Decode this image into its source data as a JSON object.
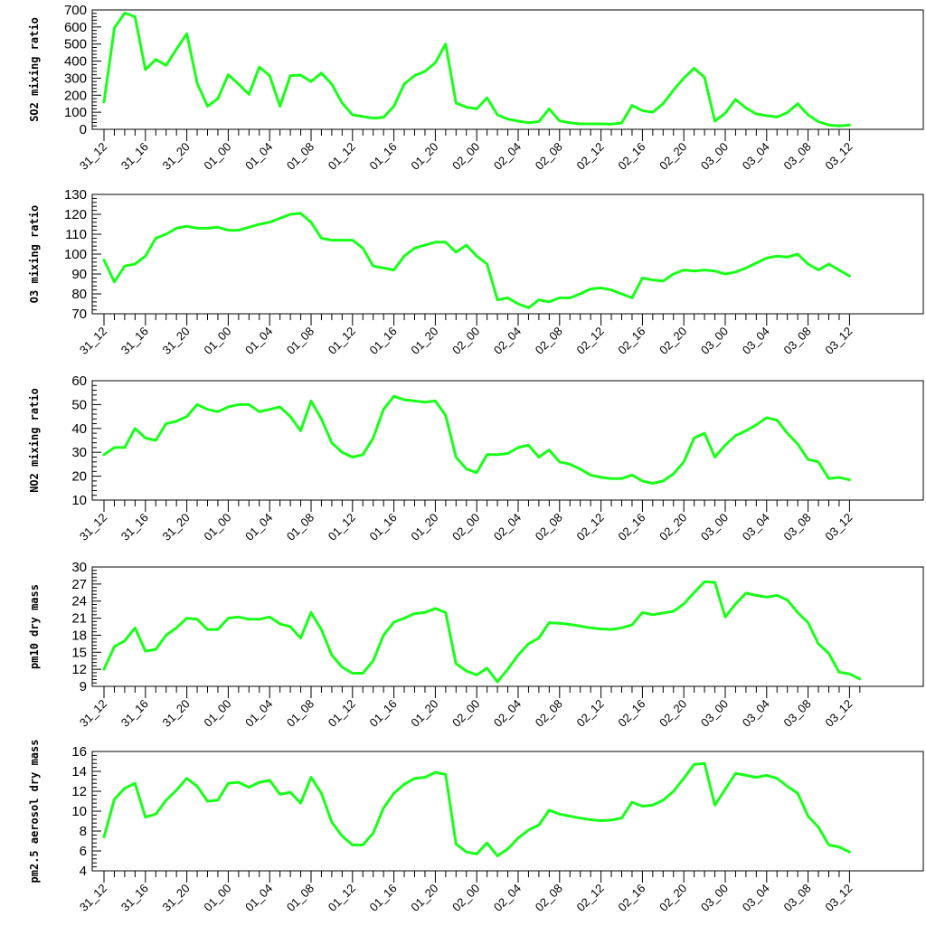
{
  "line_color": "#19ff19",
  "chart_data": [
    {
      "type": "line",
      "ylabel": "SO2 mixing ratio",
      "ylim": [
        0,
        700
      ],
      "yticks": [
        0,
        100,
        200,
        300,
        400,
        500,
        600,
        700
      ],
      "xtick_labels": [
        "31_12",
        "31_16",
        "31_20",
        "01_00",
        "01_04",
        "01_08",
        "01_12",
        "01_16",
        "01_20",
        "02_00",
        "02_04",
        "02_08",
        "02_12",
        "02_16",
        "02_20",
        "03_00",
        "03_04",
        "03_08",
        "03_12"
      ],
      "series": [
        {
          "values": [
            160,
            595,
            682,
            660,
            350,
            410,
            375,
            470,
            560,
            270,
            135,
            180,
            320,
            265,
            205,
            365,
            315,
            135,
            315,
            318,
            280,
            330,
            265,
            155,
            85,
            75,
            65,
            70,
            135,
            265,
            315,
            340,
            390,
            500,
            155,
            130,
            120,
            185,
            85,
            60,
            48,
            38,
            45,
            120,
            50,
            38,
            32,
            32,
            32,
            30,
            37,
            140,
            110,
            100,
            150,
            230,
            300,
            358,
            305,
            48,
            95,
            175,
            125,
            90,
            80,
            72,
            98,
            150,
            85,
            45,
            25,
            20,
            25
          ]
        }
      ]
    },
    {
      "type": "line",
      "ylabel": "O3 mixing ratio",
      "ylim": [
        70,
        130
      ],
      "yticks": [
        70,
        80,
        90,
        100,
        110,
        120,
        130
      ],
      "xtick_labels": [
        "31_12",
        "31_16",
        "31_20",
        "01_00",
        "01_04",
        "01_08",
        "01_12",
        "01_16",
        "01_20",
        "02_00",
        "02_04",
        "02_08",
        "02_12",
        "02_16",
        "02_20",
        "03_00",
        "03_04",
        "03_08",
        "03_12"
      ],
      "series": [
        {
          "values": [
            97,
            86,
            94,
            95,
            99,
            108,
            110,
            113,
            114,
            113,
            113,
            113.5,
            112,
            112,
            113.5,
            115,
            116,
            118,
            120,
            120.5,
            116,
            108,
            107,
            107,
            107,
            103,
            94,
            93,
            92,
            99,
            103,
            104.5,
            106,
            106,
            101,
            104.5,
            99,
            95,
            77,
            78,
            75,
            73,
            77,
            76,
            78,
            78,
            80,
            82.5,
            83,
            82,
            80,
            78,
            88,
            87,
            86.5,
            90,
            92,
            91.5,
            92,
            91.5,
            90,
            91,
            93,
            95.5,
            98,
            99,
            98.5,
            100,
            95,
            92,
            95,
            92,
            89
          ]
        }
      ]
    },
    {
      "type": "line",
      "ylabel": "NO2 mixing ratio",
      "ylim": [
        10,
        60
      ],
      "yticks": [
        10,
        20,
        30,
        40,
        50,
        60
      ],
      "xtick_labels": [
        "31_12",
        "31_16",
        "31_20",
        "01_00",
        "01_04",
        "01_08",
        "01_12",
        "01_16",
        "01_20",
        "02_00",
        "02_04",
        "02_08",
        "02_12",
        "02_16",
        "02_20",
        "03_00",
        "03_04",
        "03_08",
        "03_12"
      ],
      "series": [
        {
          "values": [
            29,
            32,
            32,
            40,
            36,
            35,
            42,
            43,
            45,
            50,
            48,
            47,
            49,
            50,
            50,
            47,
            48,
            49,
            45,
            39,
            51.5,
            44,
            34,
            30,
            28,
            29,
            36,
            48,
            53.5,
            52,
            51.5,
            51,
            51.5,
            45.5,
            28,
            23,
            21.5,
            29,
            29,
            29.5,
            32,
            33,
            28,
            31,
            26,
            25,
            23,
            20.5,
            19.5,
            19,
            19,
            20.5,
            18,
            17,
            18,
            21,
            26,
            36,
            38,
            28,
            33,
            37,
            39,
            41.5,
            44.5,
            43.5,
            38,
            33.5,
            27,
            26,
            19,
            19.5,
            18.5
          ]
        }
      ]
    },
    {
      "type": "line",
      "ylabel": "pm10 dry mass",
      "ylim": [
        9,
        30
      ],
      "yticks": [
        9,
        12,
        15,
        18,
        21,
        24,
        27,
        30
      ],
      "xtick_labels": [
        "31_12",
        "31_16",
        "31_20",
        "01_00",
        "01_04",
        "01_08",
        "01_12",
        "01_16",
        "01_20",
        "02_00",
        "02_04",
        "02_08",
        "02_12",
        "02_16",
        "02_20",
        "03_00",
        "03_04",
        "03_08",
        "03_12"
      ],
      "series": [
        {
          "values": [
            12,
            16,
            17,
            19.3,
            15.2,
            15.5,
            18,
            19.3,
            21,
            20.8,
            19,
            19,
            21,
            21.2,
            20.8,
            20.8,
            21.2,
            20,
            19.5,
            17.5,
            22,
            19,
            14.5,
            12.4,
            11.3,
            11.3,
            13.5,
            18,
            20.3,
            21,
            21.8,
            22,
            22.7,
            22,
            13,
            11.7,
            11,
            12.2,
            9.8,
            12,
            14.5,
            16.5,
            17.5,
            20.2,
            20.1,
            19.9,
            19.6,
            19.3,
            19.1,
            19,
            19.3,
            19.8,
            22,
            21.6,
            21.9,
            22.2,
            23.5,
            25.5,
            27.4,
            27.3,
            21.2,
            23.5,
            25.4,
            25,
            24.7,
            25,
            24.2,
            22,
            20.2,
            16.5,
            14.8,
            11.5,
            11.2,
            10.3
          ]
        }
      ]
    },
    {
      "type": "line",
      "ylabel": "pm2.5 aerosol dry mass",
      "ylim": [
        4,
        16
      ],
      "yticks": [
        4,
        6,
        8,
        10,
        12,
        14,
        16
      ],
      "xtick_labels": [
        "31_12",
        "31_16",
        "31_20",
        "01_00",
        "01_04",
        "01_08",
        "01_12",
        "01_16",
        "01_20",
        "02_00",
        "02_04",
        "02_08",
        "02_12",
        "02_16",
        "02_20",
        "03_00",
        "03_04",
        "03_08",
        "03_12"
      ],
      "series": [
        {
          "values": [
            7.4,
            11.2,
            12.3,
            12.8,
            9.4,
            9.7,
            11.1,
            12.1,
            13.3,
            12.5,
            11,
            11.1,
            12.8,
            12.9,
            12.4,
            12.9,
            13.1,
            11.7,
            11.9,
            10.8,
            13.4,
            11.8,
            8.9,
            7.5,
            6.6,
            6.6,
            7.8,
            10.3,
            11.8,
            12.7,
            13.3,
            13.4,
            13.9,
            13.7,
            6.7,
            5.9,
            5.7,
            6.8,
            5.5,
            6.2,
            7.3,
            8.1,
            8.6,
            10.1,
            9.7,
            9.5,
            9.3,
            9.15,
            9.05,
            9.1,
            9.3,
            10.9,
            10.5,
            10.6,
            11.1,
            12,
            13.3,
            14.7,
            14.8,
            10.6,
            12.2,
            13.8,
            13.6,
            13.4,
            13.6,
            13.3,
            12.5,
            11.8,
            9.5,
            8.4,
            6.6,
            6.4,
            5.9
          ]
        }
      ]
    }
  ]
}
